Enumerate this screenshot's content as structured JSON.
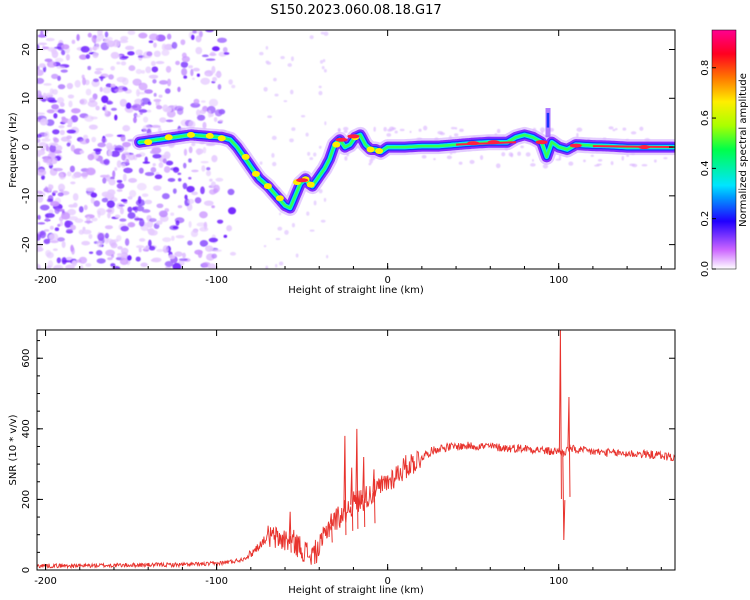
{
  "title": "S150.2023.060.08.18.G17",
  "colorbar": {
    "label": "Normalized spectral amplitude",
    "ticks": [
      "0.0",
      "0.2",
      "0.4",
      "0.6",
      "0.8"
    ]
  },
  "chart_data": [
    {
      "type": "heatmap",
      "xlabel": "Height of straight line (km)",
      "ylabel": "Frequency (Hz)",
      "xlim": [
        -205,
        168
      ],
      "ylim": [
        -25,
        24
      ],
      "xticks": [
        -200,
        -100,
        0,
        100
      ],
      "yticks": [
        -20,
        -10,
        0,
        10,
        20
      ],
      "ridge": {
        "x": [
          -145,
          -135,
          -125,
          -115,
          -105,
          -97,
          -92,
          -88,
          -84,
          -80,
          -75,
          -70,
          -65,
          -60,
          -57,
          -54,
          -51,
          -48,
          -46,
          -44,
          -42,
          -40,
          -37,
          -34,
          -31,
          -28,
          -25,
          -22,
          -19,
          -16,
          -13,
          -10,
          -7,
          -4,
          0,
          10,
          20,
          30,
          40,
          50,
          60,
          70,
          75,
          80,
          85,
          90,
          93,
          96,
          100,
          105,
          110,
          120,
          130,
          140,
          150,
          160,
          167
        ],
        "y": [
          1,
          1.5,
          2,
          2.5,
          2.2,
          2,
          1.5,
          0,
          -2,
          -4,
          -6.5,
          -8,
          -10,
          -12,
          -12.5,
          -10,
          -7.5,
          -6.5,
          -7.5,
          -8,
          -7,
          -6,
          -4.5,
          -2.5,
          0.5,
          1.5,
          0,
          0.5,
          2,
          2.5,
          0.5,
          -0.5,
          -0.5,
          -1,
          0,
          0,
          0.2,
          0.2,
          0.5,
          0.8,
          1,
          1,
          2,
          2.5,
          2,
          1,
          -2,
          1,
          0,
          -0.5,
          0.5,
          0.3,
          0.2,
          0,
          0,
          0,
          0
        ]
      }
    },
    {
      "type": "line",
      "xlabel": "Height of straight line (km)",
      "ylabel": "SNR (10 * v/v)",
      "xlim": [
        -205,
        168
      ],
      "ylim": [
        0,
        680
      ],
      "xticks": [
        -200,
        -100,
        0,
        100
      ],
      "yticks": [
        0,
        200,
        400,
        600
      ],
      "series": [
        {
          "color": "#e8332d",
          "x": [
            -205,
            -180,
            -150,
            -120,
            -100,
            -90,
            -85,
            -80,
            -75,
            -70,
            -65,
            -60,
            -55,
            -50,
            -45,
            -40,
            -35,
            -30,
            -25,
            -20,
            -15,
            -10,
            -5,
            0,
            5,
            10,
            15,
            20,
            25,
            30,
            40,
            50,
            60,
            70,
            80,
            90,
            95,
            100,
            103,
            106,
            110,
            120,
            130,
            140,
            150,
            160,
            167
          ],
          "y": [
            12,
            12,
            14,
            15,
            18,
            25,
            30,
            45,
            70,
            95,
            90,
            85,
            80,
            60,
            40,
            60,
            120,
            145,
            165,
            190,
            200,
            215,
            230,
            250,
            270,
            290,
            305,
            320,
            335,
            345,
            350,
            352,
            350,
            345,
            345,
            340,
            335,
            338,
            330,
            345,
            340,
            335,
            332,
            330,
            328,
            325,
            318
          ]
        }
      ],
      "spikes": [
        {
          "x": -57,
          "y": 165
        },
        {
          "x": -33,
          "y": 160
        },
        {
          "x": -25,
          "y": 380
        },
        {
          "x": -21,
          "y": 290
        },
        {
          "x": -18,
          "y": 400
        },
        {
          "x": -14,
          "y": 320
        },
        {
          "x": -8,
          "y": 285
        },
        {
          "x": 101,
          "y": 680
        },
        {
          "x": 103,
          "y": 85
        },
        {
          "x": 106,
          "y": 490
        }
      ]
    }
  ]
}
